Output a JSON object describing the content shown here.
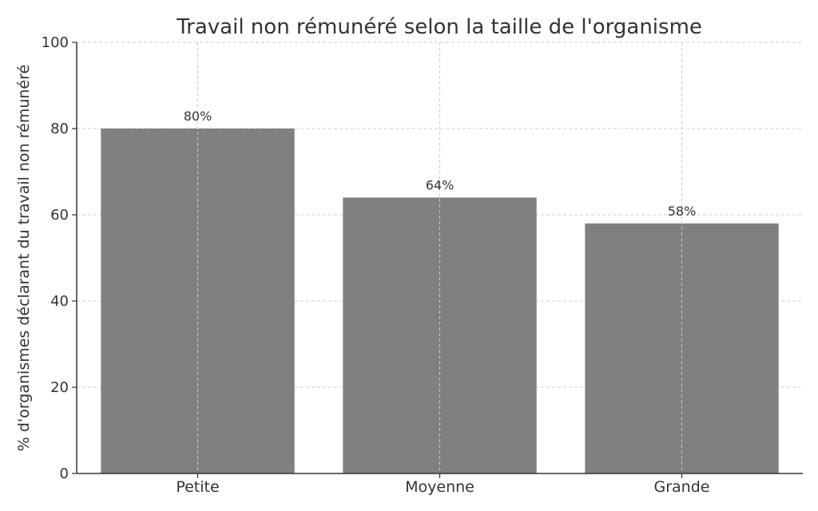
{
  "chart_data": {
    "type": "bar",
    "title": "Travail non rémunéré selon la taille de l'organisme",
    "xlabel": "",
    "ylabel": "% d'organismes déclarant du travail non rémunéré",
    "categories": [
      "Petite",
      "Moyenne",
      "Grande"
    ],
    "values": [
      80,
      64,
      58
    ],
    "data_labels": [
      "80%",
      "64%",
      "58%"
    ],
    "ylim": [
      0,
      100
    ],
    "yticks": [
      0,
      20,
      40,
      60,
      80,
      100
    ],
    "grid": true,
    "bar_color": "#808080"
  }
}
